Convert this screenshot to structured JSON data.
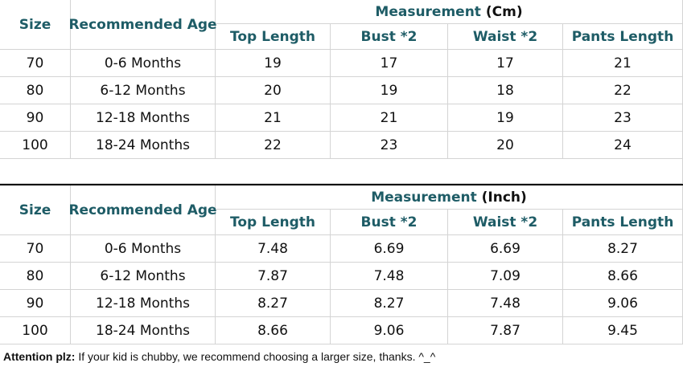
{
  "tables": [
    {
      "measurement_label": "Measurement",
      "unit": "(Cm)",
      "columns": [
        "Size",
        "Recommended Age",
        "Top Length",
        "Bust *2",
        "Waist *2",
        "Pants Length"
      ],
      "rows": [
        [
          "70",
          "0-6 Months",
          "19",
          "17",
          "17",
          "21"
        ],
        [
          "80",
          "6-12 Months",
          "20",
          "19",
          "18",
          "22"
        ],
        [
          "90",
          "12-18 Months",
          "21",
          "21",
          "19",
          "23"
        ],
        [
          "100",
          "18-24 Months",
          "22",
          "23",
          "20",
          "24"
        ]
      ]
    },
    {
      "measurement_label": "Measurement",
      "unit": "(Inch)",
      "columns": [
        "Size",
        "Recommended Age",
        "Top Length",
        "Bust *2",
        "Waist *2",
        "Pants Length"
      ],
      "rows": [
        [
          "70",
          "0-6 Months",
          "7.48",
          "6.69",
          "6.69",
          "8.27"
        ],
        [
          "80",
          "6-12 Months",
          "7.87",
          "7.48",
          "7.09",
          "8.66"
        ],
        [
          "90",
          "12-18 Months",
          "8.27",
          "8.27",
          "7.48",
          "9.06"
        ],
        [
          "100",
          "18-24 Months",
          "8.66",
          "9.06",
          "7.87",
          "9.45"
        ]
      ]
    }
  ],
  "note": {
    "label": "Attention plz:",
    "text": "If your kid is chubby, we recommend choosing a larger size, thanks. ^_^"
  }
}
